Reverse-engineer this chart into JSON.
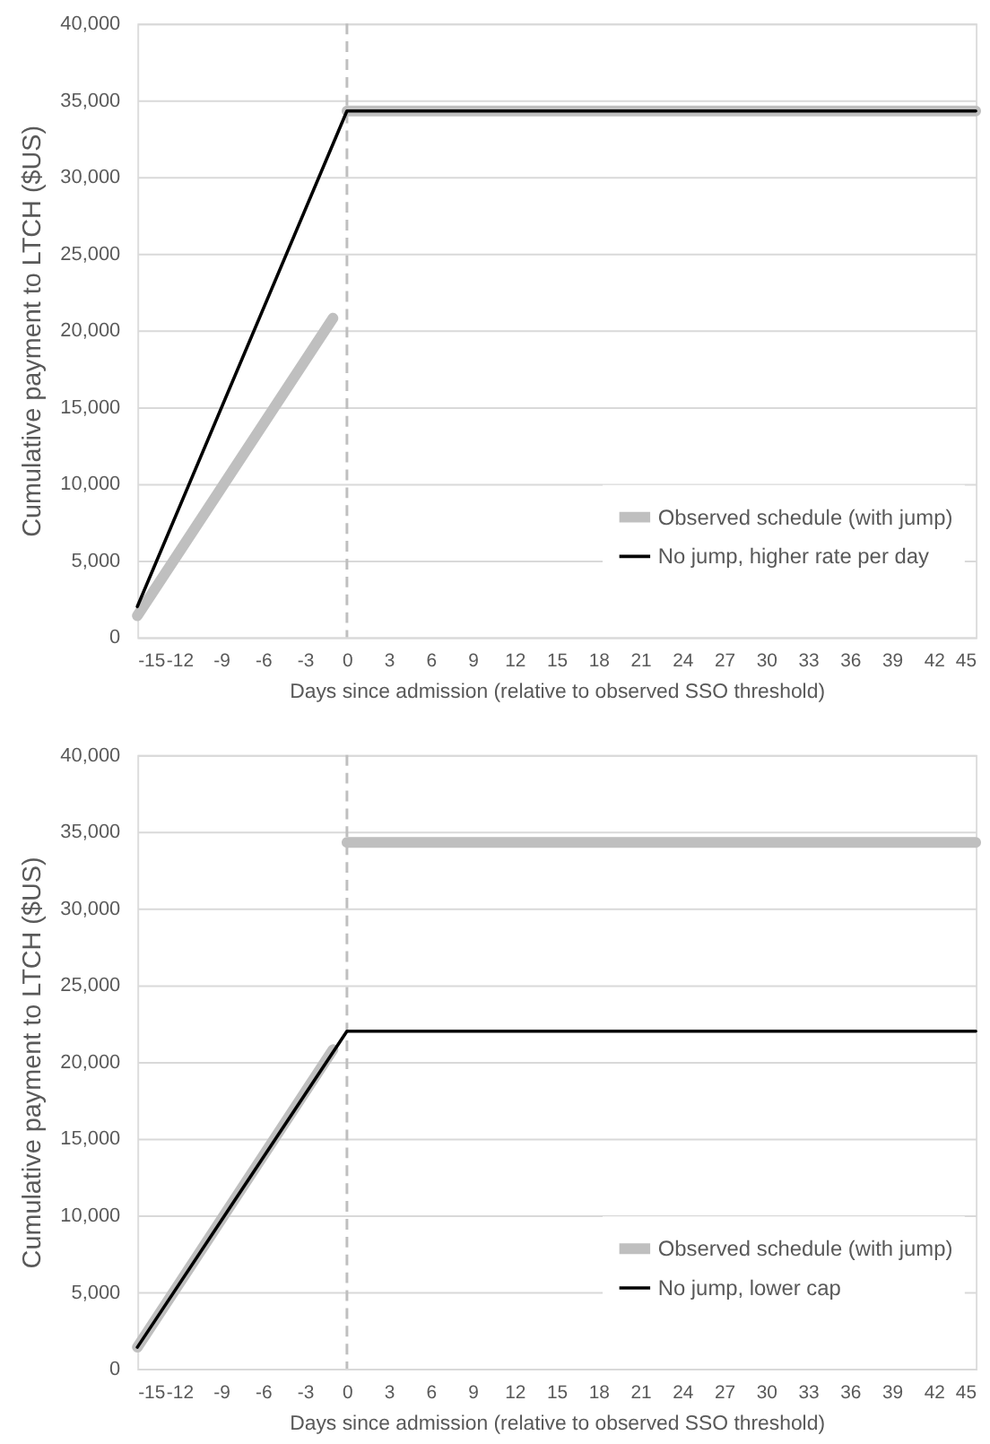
{
  "chart_data": [
    {
      "type": "line",
      "xlabel": "Days since admission (relative to observed SSO threshold)",
      "ylabel": "Cumulative payment to LTCH ($US)",
      "xlim": [
        -15,
        45
      ],
      "xticks": [
        -15,
        -12,
        -9,
        -6,
        -3,
        0,
        3,
        6,
        9,
        12,
        15,
        18,
        21,
        24,
        27,
        30,
        33,
        36,
        39,
        42,
        45
      ],
      "ylim": [
        0,
        40000
      ],
      "yticks": [
        0,
        {
          "value": 5000,
          "label": "5,000"
        },
        {
          "value": 10000,
          "label": "10,000"
        },
        {
          "value": 15000,
          "label": "15,000"
        },
        {
          "value": 20000,
          "label": "20,000"
        },
        {
          "value": 25000,
          "label": "25,000"
        },
        {
          "value": 30000,
          "label": "30,000"
        },
        {
          "value": 35000,
          "label": "35,000"
        },
        {
          "value": 40000,
          "label": "40,000"
        }
      ],
      "grid": "y",
      "legend": "bottom right",
      "ref_lines": [
        {
          "axis": "x",
          "value": 0,
          "color": "#bfbfbf",
          "line_style": "dashed"
        }
      ],
      "series": [
        {
          "name": "Observed schedule (with jump)",
          "color": "#bfbfbf",
          "x": [
            -15,
            -1,
            null,
            0,
            45
          ],
          "values": [
            1400,
            20800,
            null,
            34300,
            34300
          ]
        },
        {
          "name": "No jump, higher rate per day",
          "color": "#000000",
          "x": [
            -15,
            0,
            45
          ],
          "values": [
            2000,
            34300,
            34300
          ]
        }
      ]
    },
    {
      "type": "line",
      "xlabel": "Days since admission (relative to observed SSO threshold)",
      "ylabel": "Cumulative payment to LTCH ($US)",
      "xlim": [
        -15,
        45
      ],
      "xticks": [
        -15,
        -12,
        -9,
        -6,
        -3,
        0,
        3,
        6,
        9,
        12,
        15,
        18,
        21,
        24,
        27,
        30,
        33,
        36,
        39,
        42,
        45
      ],
      "ylim": [
        0,
        40000
      ],
      "yticks": [
        0,
        {
          "value": 5000,
          "label": "5,000"
        },
        {
          "value": 10000,
          "label": "10,000"
        },
        {
          "value": 15000,
          "label": "15,000"
        },
        {
          "value": 20000,
          "label": "20,000"
        },
        {
          "value": 25000,
          "label": "25,000"
        },
        {
          "value": 30000,
          "label": "30,000"
        },
        {
          "value": 35000,
          "label": "35,000"
        },
        {
          "value": 40000,
          "label": "40,000"
        }
      ],
      "grid": "y",
      "legend": "bottom right",
      "ref_lines": [
        {
          "axis": "x",
          "value": 0,
          "color": "#bfbfbf",
          "line_style": "dashed"
        }
      ],
      "series": [
        {
          "name": "Observed schedule (with jump)",
          "color": "#bfbfbf",
          "x": [
            -15,
            -1,
            null,
            0,
            45
          ],
          "values": [
            1400,
            20800,
            null,
            34300,
            34300
          ]
        },
        {
          "name": "No jump, lower cap",
          "color": "#000000",
          "x": [
            -15,
            0,
            45
          ],
          "values": [
            1400,
            22000,
            22000
          ]
        }
      ]
    }
  ]
}
